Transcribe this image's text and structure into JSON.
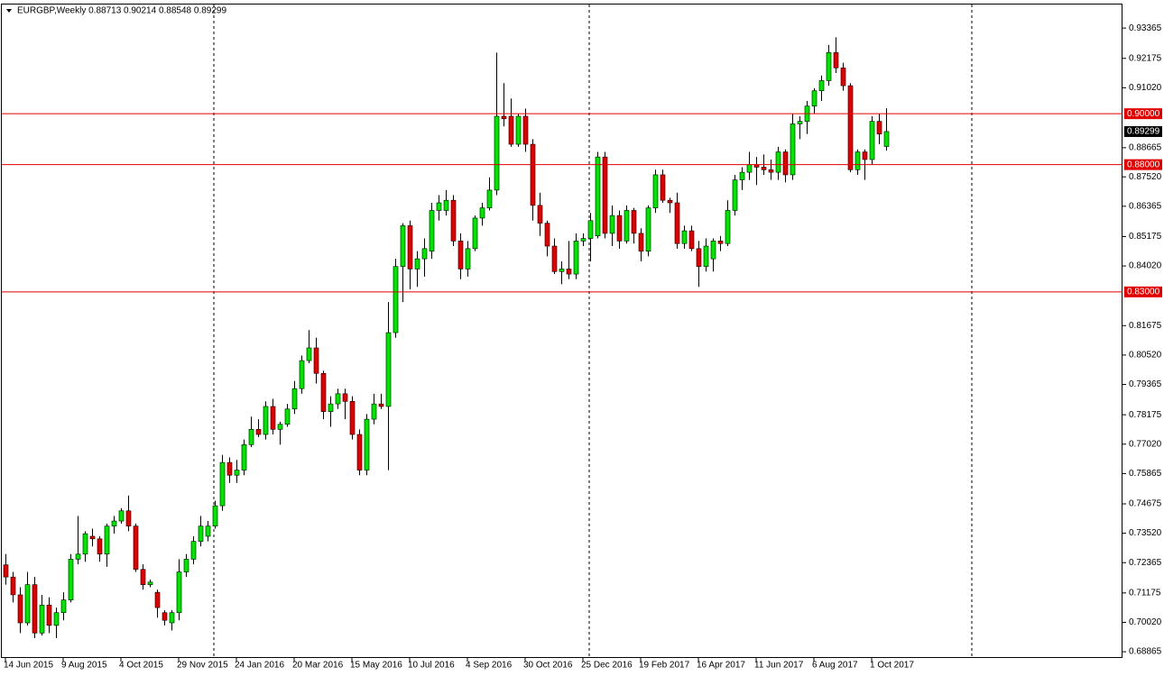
{
  "chart_data": {
    "type": "candlestick",
    "title": "EURGBP,Weekly  0.88713 0.90214 0.88548 0.89299",
    "categories": [
      "14 Jun 2015",
      null,
      null,
      null,
      null,
      null,
      null,
      null,
      "9 Aug 2015",
      null,
      null,
      null,
      null,
      null,
      null,
      null,
      "4 Oct 2015",
      null,
      null,
      null,
      null,
      null,
      null,
      null,
      "29 Nov 2015",
      null,
      null,
      null,
      null,
      null,
      null,
      null,
      "24 Jan 2016",
      null,
      null,
      null,
      null,
      null,
      null,
      null,
      "20 Mar 2016",
      null,
      null,
      null,
      null,
      null,
      null,
      null,
      "15 May 2016",
      null,
      null,
      null,
      null,
      null,
      null,
      null,
      "10 Jul 2016",
      null,
      null,
      null,
      null,
      null,
      null,
      null,
      "4 Sep 2016",
      null,
      null,
      null,
      null,
      null,
      null,
      null,
      "30 Oct 2016",
      null,
      null,
      null,
      null,
      null,
      null,
      null,
      "25 Dec 2016",
      null,
      null,
      null,
      null,
      null,
      null,
      null,
      "19 Feb 2017",
      null,
      null,
      null,
      null,
      null,
      null,
      null,
      "16 Apr 2017",
      null,
      null,
      null,
      null,
      null,
      null,
      null,
      "11 Jun 2017",
      null,
      null,
      null,
      null,
      null,
      null,
      null,
      "6 Aug 2017",
      null,
      null,
      null,
      null,
      null,
      null,
      null,
      "1 Oct 2017",
      null,
      null
    ],
    "open": [
      0.7228,
      0.718,
      0.711,
      0.7,
      0.715,
      0.696,
      0.707,
      0.699,
      0.704,
      0.709,
      0.725,
      0.727,
      0.734,
      0.733,
      0.727,
      0.738,
      0.74,
      0.744,
      0.738,
      0.721,
      0.715,
      0.712,
      0.704,
      0.7,
      0.704,
      0.72,
      0.725,
      0.732,
      0.734,
      0.738,
      0.746,
      0.763,
      0.758,
      0.76,
      0.77,
      0.776,
      0.774,
      0.785,
      0.776,
      0.778,
      0.784,
      0.792,
      0.803,
      0.808,
      0.798,
      0.783,
      0.786,
      0.79,
      0.787,
      0.774,
      0.76,
      0.78,
      0.786,
      0.785,
      0.814,
      0.84,
      0.856,
      0.839,
      0.843,
      0.846,
      0.862,
      0.862,
      0.866,
      0.85,
      0.839,
      0.847,
      0.859,
      0.863,
      0.87,
      0.899,
      0.899,
      0.888,
      0.899,
      0.888,
      0.864,
      0.857,
      0.848,
      0.838,
      0.839,
      0.837,
      0.85,
      0.851,
      0.852,
      0.883,
      0.853,
      0.86,
      0.85,
      0.862,
      0.853,
      0.846,
      0.863,
      0.876,
      0.866,
      0.865,
      0.849,
      0.854,
      0.847,
      0.84,
      0.843,
      0.85,
      0.849,
      0.862,
      0.874,
      0.877,
      0.88,
      0.879,
      0.878,
      0.877,
      0.885,
      0.876,
      0.896,
      0.897,
      0.903,
      0.909,
      0.913,
      0.924,
      0.918,
      0.911,
      0.878,
      0.885,
      0.882,
      0.897,
      0.88713
    ],
    "high": [
      0.727,
      0.72,
      0.714,
      0.72,
      0.718,
      0.711,
      0.71,
      0.706,
      0.712,
      0.727,
      0.742,
      0.736,
      0.737,
      0.734,
      0.739,
      0.742,
      0.745,
      0.75,
      0.739,
      0.723,
      0.717,
      0.713,
      0.705,
      0.705,
      0.725,
      0.727,
      0.734,
      0.742,
      0.74,
      0.748,
      0.766,
      0.765,
      0.764,
      0.772,
      0.781,
      0.78,
      0.787,
      0.788,
      0.779,
      0.786,
      0.795,
      0.805,
      0.815,
      0.812,
      0.799,
      0.789,
      0.792,
      0.792,
      0.789,
      0.776,
      0.782,
      0.79,
      0.79,
      0.826,
      0.843,
      0.857,
      0.858,
      0.846,
      0.851,
      0.865,
      0.868,
      0.87,
      0.868,
      0.853,
      0.85,
      0.86,
      0.865,
      0.875,
      0.924,
      0.912,
      0.906,
      0.9,
      0.902,
      0.89,
      0.869,
      0.858,
      0.851,
      0.842,
      0.85,
      0.853,
      0.853,
      0.861,
      0.885,
      0.885,
      0.864,
      0.862,
      0.864,
      0.863,
      0.855,
      0.864,
      0.878,
      0.878,
      0.867,
      0.869,
      0.856,
      0.856,
      0.85,
      0.851,
      0.851,
      0.852,
      0.866,
      0.876,
      0.879,
      0.885,
      0.883,
      0.884,
      0.882,
      0.887,
      0.886,
      0.9,
      0.899,
      0.905,
      0.91,
      0.915,
      0.927,
      0.93,
      0.92,
      0.912,
      0.886,
      0.886,
      0.899,
      0.9,
      0.90214
    ],
    "low": [
      0.715,
      0.708,
      0.696,
      0.699,
      0.694,
      0.695,
      0.696,
      0.694,
      0.701,
      0.708,
      0.723,
      0.724,
      0.73,
      0.724,
      0.722,
      0.735,
      0.739,
      0.736,
      0.72,
      0.713,
      0.714,
      0.702,
      0.699,
      0.697,
      0.701,
      0.718,
      0.723,
      0.73,
      0.732,
      0.737,
      0.744,
      0.755,
      0.755,
      0.758,
      0.769,
      0.773,
      0.772,
      0.774,
      0.77,
      0.777,
      0.782,
      0.79,
      0.802,
      0.794,
      0.78,
      0.777,
      0.784,
      0.78,
      0.772,
      0.758,
      0.758,
      0.778,
      0.784,
      0.76,
      0.812,
      0.826,
      0.831,
      0.832,
      0.836,
      0.843,
      0.858,
      0.86,
      0.848,
      0.835,
      0.836,
      0.846,
      0.856,
      0.862,
      0.868,
      0.895,
      0.887,
      0.887,
      0.885,
      0.858,
      0.852,
      0.844,
      0.837,
      0.833,
      0.835,
      0.835,
      0.848,
      0.842,
      0.851,
      0.851,
      0.848,
      0.847,
      0.849,
      0.849,
      0.842,
      0.844,
      0.861,
      0.865,
      0.861,
      0.847,
      0.847,
      0.846,
      0.832,
      0.838,
      0.838,
      0.846,
      0.848,
      0.86,
      0.87,
      0.874,
      0.872,
      0.876,
      0.874,
      0.874,
      0.873,
      0.874,
      0.89,
      0.892,
      0.9,
      0.905,
      0.911,
      0.916,
      0.909,
      0.877,
      0.876,
      0.874,
      0.88,
      0.888,
      0.88548
    ],
    "close": [
      0.718,
      0.711,
      0.7,
      0.715,
      0.696,
      0.707,
      0.699,
      0.704,
      0.709,
      0.725,
      0.727,
      0.735,
      0.733,
      0.727,
      0.738,
      0.74,
      0.744,
      0.738,
      0.721,
      0.715,
      0.716,
      0.706,
      0.701,
      0.704,
      0.72,
      0.725,
      0.732,
      0.738,
      0.738,
      0.746,
      0.763,
      0.758,
      0.76,
      0.77,
      0.776,
      0.774,
      0.785,
      0.776,
      0.778,
      0.784,
      0.792,
      0.803,
      0.808,
      0.798,
      0.783,
      0.786,
      0.79,
      0.787,
      0.774,
      0.76,
      0.78,
      0.786,
      0.785,
      0.814,
      0.84,
      0.856,
      0.839,
      0.843,
      0.847,
      0.862,
      0.865,
      0.866,
      0.85,
      0.839,
      0.847,
      0.859,
      0.863,
      0.87,
      0.899,
      0.898,
      0.888,
      0.899,
      0.888,
      0.864,
      0.857,
      0.848,
      0.838,
      0.839,
      0.837,
      0.85,
      0.851,
      0.858,
      0.883,
      0.853,
      0.86,
      0.85,
      0.862,
      0.853,
      0.846,
      0.863,
      0.876,
      0.866,
      0.865,
      0.849,
      0.854,
      0.847,
      0.84,
      0.848,
      0.85,
      0.849,
      0.862,
      0.874,
      0.877,
      0.88,
      0.879,
      0.878,
      0.877,
      0.885,
      0.876,
      0.896,
      0.897,
      0.903,
      0.909,
      0.913,
      0.924,
      0.918,
      0.911,
      0.878,
      0.885,
      0.882,
      0.897,
      0.892,
      0.89299
    ],
    "up_color": "#00e600",
    "down_color": "#e00000",
    "ylim": [
      0.6862,
      0.9429
    ],
    "yticks": [
      0.93365,
      0.92175,
      {
        "value": 0.9102,
        "label": "0.91020"
      },
      0.88665,
      {
        "value": 0.8752,
        "label": "0.87520"
      },
      0.86365,
      0.85175,
      {
        "value": 0.8402,
        "label": "0.84020"
      },
      0.81675,
      {
        "value": 0.8052,
        "label": "0.80520"
      },
      0.79365,
      0.78175,
      {
        "value": 0.7702,
        "label": "0.77020"
      },
      0.75865,
      0.74675,
      {
        "value": 0.7352,
        "label": "0.73520"
      },
      0.72365,
      0.71175,
      {
        "value": 0.7002,
        "label": "0.70020"
      },
      0.68865
    ],
    "levels": [
      {
        "value": 0.9,
        "label": "0.90000"
      },
      {
        "value": 0.88,
        "label": "0.88000"
      },
      {
        "value": 0.83,
        "label": "0.83000"
      }
    ],
    "level_color": "#e00000",
    "current_price": 0.89299,
    "grid": false
  }
}
